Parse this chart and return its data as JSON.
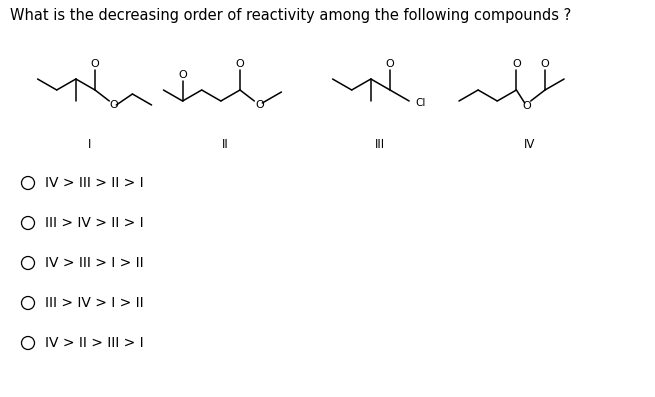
{
  "title": "What is the decreasing order of reactivity among the following compounds ?",
  "title_fontsize": 10.5,
  "bg_color": "#ffffff",
  "text_color": "#000000",
  "options": [
    "IV > III > II > I",
    "III > IV > II > I",
    "IV > III > I > II",
    "III > IV > I > II",
    "IV > II > III > I"
  ],
  "compound_labels": [
    "I",
    "II",
    "III",
    "IV"
  ],
  "fig_width": 6.55,
  "fig_height": 3.97,
  "dpi": 100
}
